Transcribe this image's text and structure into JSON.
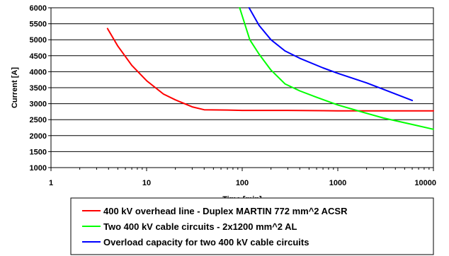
{
  "chart_data": {
    "type": "line",
    "xlabel": "Time [min]",
    "ylabel": "Current [A]",
    "x_scale": "log",
    "xlim": [
      1,
      10000
    ],
    "ylim": [
      1000,
      6000
    ],
    "x_ticks": [
      1,
      10,
      100,
      1000,
      10000
    ],
    "x_tick_labels": [
      "1",
      "10",
      "100",
      "1000",
      "10000"
    ],
    "y_ticks": [
      1000,
      1500,
      2000,
      2500,
      3000,
      3500,
      4000,
      4500,
      5000,
      5500,
      6000
    ],
    "y_tick_labels": [
      "1000",
      "1500",
      "2000",
      "2500",
      "3000",
      "3500",
      "4000",
      "4500",
      "5000",
      "5500",
      "6000"
    ],
    "grid": {
      "horizontal": true,
      "vertical": false
    },
    "legend_position": "bottom",
    "series": [
      {
        "name": "400 kV overhead line - Duplex MARTIN 772 mm^2 ACSR",
        "color": "#ff0000",
        "points": [
          [
            3.9,
            5350
          ],
          [
            5,
            4800
          ],
          [
            7,
            4200
          ],
          [
            10,
            3720
          ],
          [
            15,
            3300
          ],
          [
            20,
            3120
          ],
          [
            30,
            2900
          ],
          [
            40,
            2810
          ],
          [
            70,
            2800
          ],
          [
            100,
            2790
          ],
          [
            300,
            2790
          ],
          [
            700,
            2780
          ],
          [
            1000,
            2775
          ],
          [
            3000,
            2775
          ],
          [
            10000,
            2775
          ]
        ]
      },
      {
        "name": "Two 400 kV cable circuits - 2x1200 mm^2 AL",
        "color": "#00ff00",
        "points": [
          [
            94,
            6000
          ],
          [
            120,
            5000
          ],
          [
            150,
            4550
          ],
          [
            200,
            4050
          ],
          [
            280,
            3620
          ],
          [
            400,
            3400
          ],
          [
            600,
            3200
          ],
          [
            1000,
            2960
          ],
          [
            2000,
            2700
          ],
          [
            3000,
            2550
          ],
          [
            6000,
            2350
          ],
          [
            10000,
            2200
          ]
        ]
      },
      {
        "name": "Overload capacity for two 400 kV cable circuits",
        "color": "#0000ff",
        "points": [
          [
            118,
            6000
          ],
          [
            150,
            5450
          ],
          [
            200,
            5000
          ],
          [
            280,
            4650
          ],
          [
            400,
            4420
          ],
          [
            700,
            4120
          ],
          [
            1000,
            3950
          ],
          [
            2000,
            3650
          ],
          [
            3000,
            3450
          ],
          [
            6000,
            3100
          ]
        ]
      }
    ]
  }
}
